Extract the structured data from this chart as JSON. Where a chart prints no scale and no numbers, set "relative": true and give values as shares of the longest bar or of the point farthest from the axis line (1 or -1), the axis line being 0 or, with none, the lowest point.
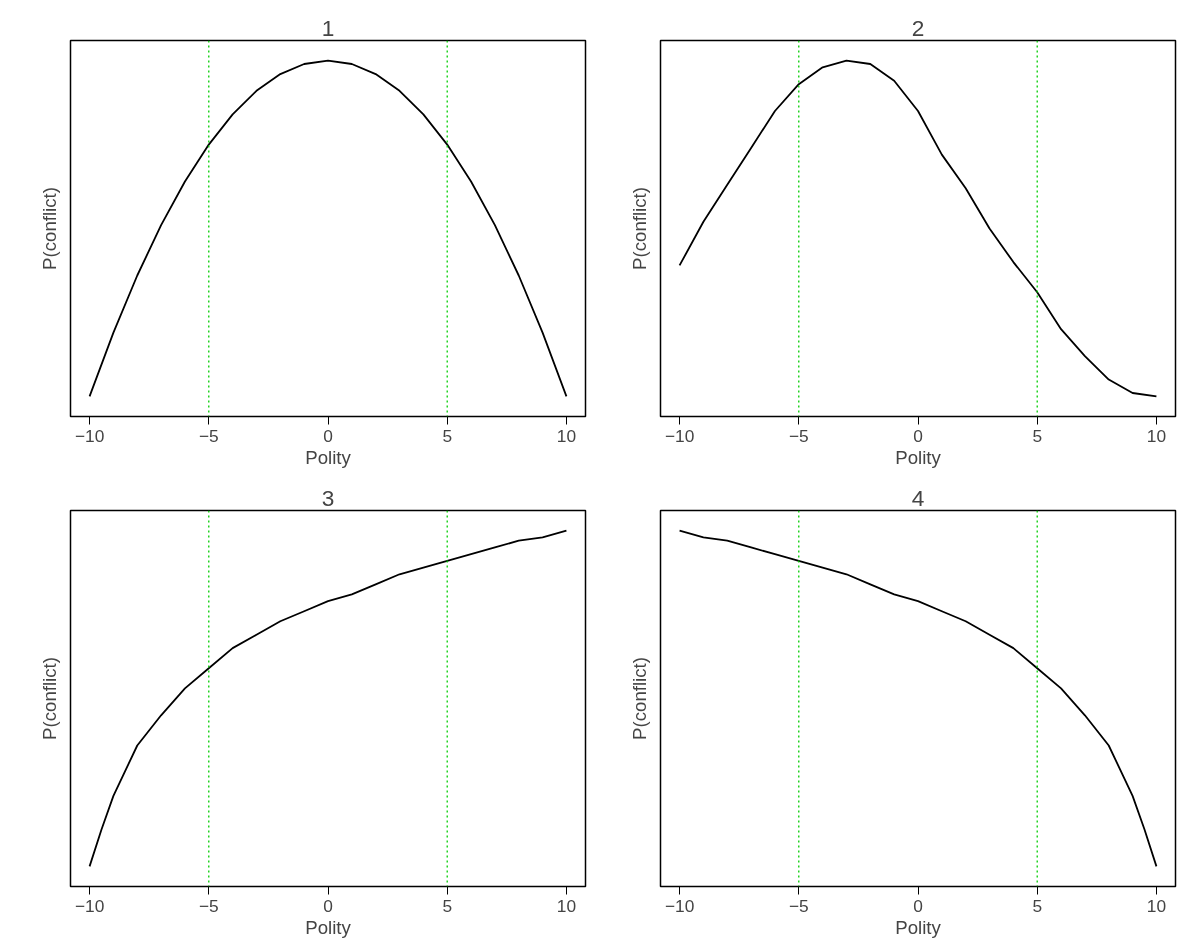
{
  "chart_data": [
    {
      "type": "line",
      "title": "1",
      "xlabel": "Polity",
      "ylabel": "P(conflict)",
      "relative": true,
      "color": "#000000",
      "x": [
        -10,
        -9,
        -8,
        -7,
        -6,
        -5,
        -4,
        -3,
        -2,
        -1,
        0,
        1,
        2,
        3,
        4,
        5,
        6,
        7,
        8,
        9,
        10
      ],
      "values": [
        0,
        0.19,
        0.36,
        0.51,
        0.64,
        0.75,
        0.84,
        0.91,
        0.96,
        0.99,
        1,
        0.99,
        0.96,
        0.91,
        0.84,
        0.75,
        0.64,
        0.51,
        0.36,
        0.19,
        0
      ],
      "xlim": [
        -10.8,
        10.8
      ],
      "xticks": [
        -10,
        -5,
        0,
        5,
        10
      ],
      "ref_lines": [
        {
          "axis": "x",
          "value": -5,
          "color": "#00cc00",
          "line_style": "dotted"
        },
        {
          "axis": "x",
          "value": 5,
          "color": "#00cc00",
          "line_style": "dotted"
        }
      ]
    },
    {
      "type": "line",
      "title": "2",
      "xlabel": "Polity",
      "ylabel": "P(conflict)",
      "relative": true,
      "color": "#000000",
      "x": [
        -10,
        -9,
        -8,
        -7,
        -6,
        -5,
        -4,
        -3,
        -2,
        -1,
        0,
        1,
        2,
        3,
        4,
        5,
        6,
        7,
        8,
        9,
        10
      ],
      "values": [
        0.39,
        0.52,
        0.63,
        0.74,
        0.85,
        0.93,
        0.98,
        1,
        0.99,
        0.94,
        0.85,
        0.72,
        0.62,
        0.5,
        0.4,
        0.31,
        0.2,
        0.12,
        0.05,
        0.01,
        0
      ],
      "xlim": [
        -10.8,
        10.8
      ],
      "xticks": [
        -10,
        -5,
        0,
        5,
        10
      ],
      "ref_lines": [
        {
          "axis": "x",
          "value": -5,
          "color": "#00cc00",
          "line_style": "dotted"
        },
        {
          "axis": "x",
          "value": 5,
          "color": "#00cc00",
          "line_style": "dotted"
        }
      ]
    },
    {
      "type": "line",
      "title": "3",
      "xlabel": "Polity",
      "ylabel": "P(conflict)",
      "relative": true,
      "color": "#000000",
      "x": [
        -10,
        -9.5,
        -9,
        -8,
        -7,
        -6,
        -5,
        -4,
        -3,
        -2,
        -1,
        0,
        1,
        2,
        3,
        4,
        5,
        6,
        7,
        8,
        9,
        10
      ],
      "values": [
        0,
        0.11,
        0.21,
        0.36,
        0.45,
        0.53,
        0.59,
        0.65,
        0.69,
        0.73,
        0.76,
        0.79,
        0.81,
        0.84,
        0.87,
        0.89,
        0.91,
        0.93,
        0.95,
        0.97,
        0.98,
        1
      ],
      "xlim": [
        -10.8,
        10.8
      ],
      "xticks": [
        -10,
        -5,
        0,
        5,
        10
      ],
      "ref_lines": [
        {
          "axis": "x",
          "value": -5,
          "color": "#00cc00",
          "line_style": "dotted"
        },
        {
          "axis": "x",
          "value": 5,
          "color": "#00cc00",
          "line_style": "dotted"
        }
      ]
    },
    {
      "type": "line",
      "title": "4",
      "xlabel": "Polity",
      "ylabel": "P(conflict)",
      "relative": true,
      "color": "#000000",
      "x": [
        -10,
        -9,
        -8,
        -7,
        -6,
        -5,
        -4,
        -3,
        -2,
        -1,
        0,
        1,
        2,
        3,
        4,
        5,
        6,
        7,
        8,
        9,
        9.5,
        10
      ],
      "values": [
        1,
        0.98,
        0.97,
        0.95,
        0.93,
        0.91,
        0.89,
        0.87,
        0.84,
        0.81,
        0.79,
        0.76,
        0.73,
        0.69,
        0.65,
        0.59,
        0.53,
        0.45,
        0.36,
        0.21,
        0.11,
        0
      ],
      "xlim": [
        -10.8,
        10.8
      ],
      "xticks": [
        -10,
        -5,
        0,
        5,
        10
      ],
      "ref_lines": [
        {
          "axis": "x",
          "value": -5,
          "color": "#00cc00",
          "line_style": "dotted"
        },
        {
          "axis": "x",
          "value": 5,
          "color": "#00cc00",
          "line_style": "dotted"
        }
      ]
    }
  ]
}
